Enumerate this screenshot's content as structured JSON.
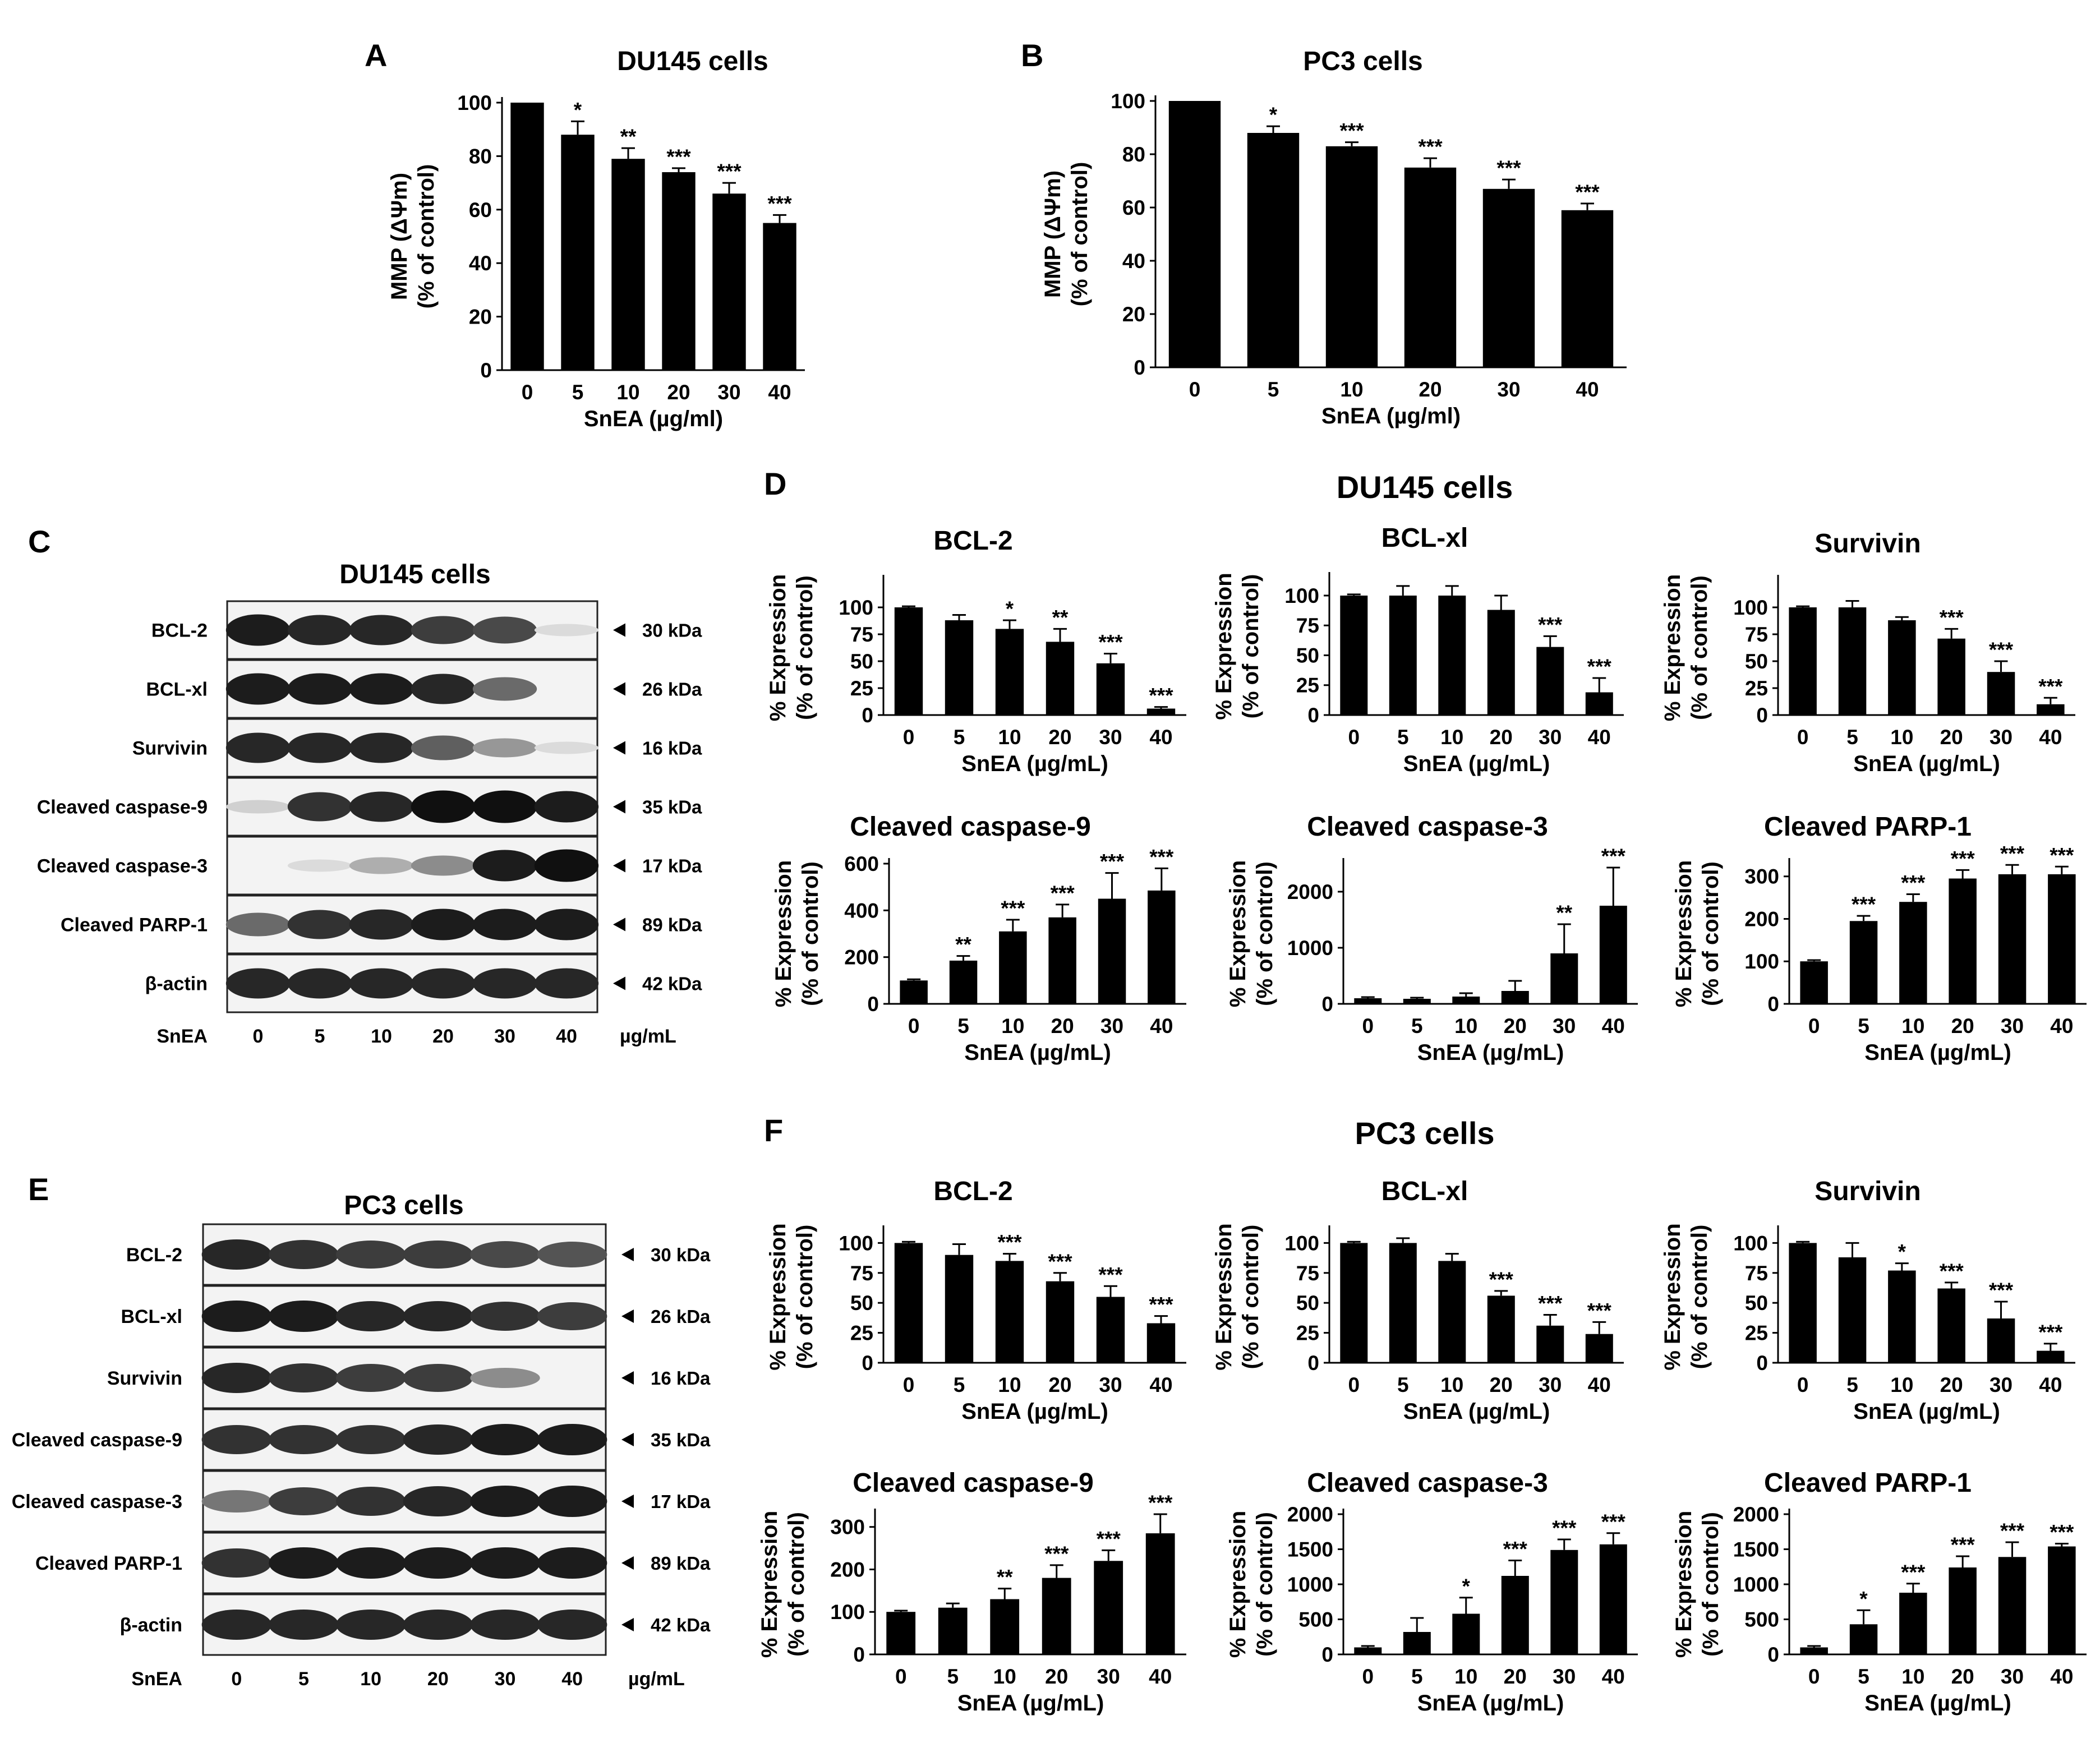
{
  "chart_data": [
    {
      "id": "A",
      "type": "bar",
      "title": "DU145 cells",
      "categories": [
        "0",
        "5",
        "10",
        "20",
        "30",
        "40"
      ],
      "values": [
        100,
        88,
        79,
        74,
        66,
        55
      ],
      "errors": [
        0,
        5,
        4,
        1.5,
        4,
        3
      ],
      "significance": [
        "",
        "*",
        "**",
        "***",
        "***",
        "***"
      ],
      "xlabel": "SnEA (µg/ml)",
      "ylabel": [
        "MMP (ΔΨm)",
        "(% of control)"
      ],
      "ylim": [
        0,
        100
      ],
      "yticks": [
        0,
        20,
        40,
        60,
        80,
        100
      ]
    },
    {
      "id": "B",
      "type": "bar",
      "title": "PC3 cells",
      "categories": [
        "0",
        "5",
        "10",
        "20",
        "30",
        "40"
      ],
      "values": [
        100,
        88,
        83,
        75,
        67,
        59
      ],
      "errors": [
        0,
        2.5,
        1.5,
        3.5,
        3.5,
        2.5
      ],
      "significance": [
        "",
        "*",
        "***",
        "***",
        "***",
        "***"
      ],
      "xlabel": "SnEA (µg/ml)",
      "ylabel": [
        "MMP (ΔΨm)",
        "(% of control)"
      ],
      "ylim": [
        0,
        100
      ],
      "yticks": [
        0,
        20,
        40,
        60,
        80,
        100
      ]
    },
    {
      "id": "D1",
      "type": "bar",
      "title": "BCL-2",
      "categories": [
        "0",
        "5",
        "10",
        "20",
        "30",
        "40"
      ],
      "values": [
        100,
        88,
        80,
        68,
        48,
        6
      ],
      "errors": [
        1,
        5,
        8,
        12,
        9,
        1.5
      ],
      "significance": [
        "",
        "",
        "*",
        "**",
        "***",
        "***"
      ],
      "xlabel": "SnEA (µg/mL)",
      "ylabel": [
        "% Expression",
        "(% of control)"
      ],
      "ylim": [
        0,
        125
      ],
      "yticks": [
        0,
        25,
        50,
        75,
        100
      ]
    },
    {
      "id": "D2",
      "type": "bar",
      "title": "BCL-xl",
      "categories": [
        "0",
        "5",
        "10",
        "20",
        "30",
        "40"
      ],
      "values": [
        100,
        100,
        100,
        88,
        57,
        19
      ],
      "errors": [
        1,
        8,
        8,
        12,
        9,
        12
      ],
      "significance": [
        "",
        "",
        "",
        "",
        "***",
        "***"
      ],
      "xlabel": "SnEA (µg/mL)",
      "ylabel": [
        "% Expression",
        "(% of control)"
      ],
      "ylim": [
        0,
        115
      ],
      "yticks": [
        0,
        25,
        50,
        75,
        100
      ]
    },
    {
      "id": "D3",
      "type": "bar",
      "title": "Survivin",
      "categories": [
        "0",
        "5",
        "10",
        "20",
        "30",
        "40"
      ],
      "values": [
        100,
        100,
        88,
        71,
        40,
        10
      ],
      "errors": [
        1,
        6,
        3,
        9,
        10,
        6
      ],
      "significance": [
        "",
        "",
        "",
        "***",
        "***",
        "***"
      ],
      "xlabel": "SnEA (µg/mL)",
      "ylabel": [
        "% Expression",
        "(% of control)"
      ],
      "ylim": [
        0,
        125
      ],
      "yticks": [
        0,
        25,
        50,
        75,
        100
      ]
    },
    {
      "id": "D4",
      "type": "bar",
      "title": "Cleaved caspase-9",
      "categories": [
        "0",
        "5",
        "10",
        "20",
        "30",
        "40"
      ],
      "values": [
        100,
        185,
        310,
        370,
        450,
        485
      ],
      "errors": [
        5,
        20,
        50,
        55,
        110,
        95
      ],
      "significance": [
        "",
        "**",
        "***",
        "***",
        "***",
        "***"
      ],
      "xlabel": "SnEA (µg/mL)",
      "ylabel": [
        "% Expression",
        "(% of control)"
      ],
      "ylim": [
        0,
        600
      ],
      "yticks": [
        0,
        200,
        400,
        600
      ]
    },
    {
      "id": "D5",
      "type": "bar",
      "title": "Cleaved caspase-3",
      "categories": [
        "0",
        "5",
        "10",
        "20",
        "30",
        "40"
      ],
      "values": [
        100,
        90,
        130,
        230,
        900,
        1750
      ],
      "errors": [
        20,
        20,
        60,
        180,
        520,
        680
      ],
      "significance": [
        "",
        "",
        "",
        "",
        "**",
        "***"
      ],
      "xlabel": "SnEA (µg/mL)",
      "ylabel": [
        "% Expression",
        "(% of control)"
      ],
      "ylim": [
        0,
        2500
      ],
      "yticks": [
        0,
        1000,
        2000
      ]
    },
    {
      "id": "D6",
      "type": "bar",
      "title": "Cleaved PARP-1",
      "categories": [
        "0",
        "5",
        "10",
        "20",
        "30",
        "40"
      ],
      "values": [
        100,
        195,
        240,
        295,
        305,
        305
      ],
      "errors": [
        3,
        12,
        18,
        20,
        22,
        18
      ],
      "significance": [
        "",
        "***",
        "***",
        "***",
        "***",
        "***"
      ],
      "xlabel": "SnEA (µg/mL)",
      "ylabel": [
        "% Expression",
        "(% of control)"
      ],
      "ylim": [
        0,
        330
      ],
      "yticks": [
        0,
        100,
        200,
        300
      ]
    },
    {
      "id": "F1",
      "type": "bar",
      "title": "BCL-2",
      "categories": [
        "0",
        "5",
        "10",
        "20",
        "30",
        "40"
      ],
      "values": [
        100,
        90,
        85,
        68,
        55,
        33
      ],
      "errors": [
        1,
        9,
        6,
        7,
        9,
        6
      ],
      "significance": [
        "",
        "",
        "***",
        "***",
        "***",
        "***"
      ],
      "xlabel": "SnEA (µg/mL)",
      "ylabel": [
        "% Expression",
        "(% of control)"
      ],
      "ylim": [
        0,
        110
      ],
      "yticks": [
        0,
        25,
        50,
        75,
        100
      ]
    },
    {
      "id": "F2",
      "type": "bar",
      "title": "BCL-xl",
      "categories": [
        "0",
        "5",
        "10",
        "20",
        "30",
        "40"
      ],
      "values": [
        100,
        100,
        85,
        56,
        31,
        24
      ],
      "errors": [
        1,
        4,
        6,
        4,
        9,
        10
      ],
      "significance": [
        "",
        "",
        "",
        "***",
        "***",
        "***"
      ],
      "xlabel": "SnEA (µg/mL)",
      "ylabel": [
        "% Expression",
        "(% of control)"
      ],
      "ylim": [
        0,
        110
      ],
      "yticks": [
        0,
        25,
        50,
        75,
        100
      ]
    },
    {
      "id": "F3",
      "type": "bar",
      "title": "Survivin",
      "categories": [
        "0",
        "5",
        "10",
        "20",
        "30",
        "40"
      ],
      "values": [
        100,
        88,
        77,
        62,
        37,
        10
      ],
      "errors": [
        1,
        12,
        6,
        5,
        14,
        6
      ],
      "significance": [
        "",
        "",
        "*",
        "***",
        "***",
        "***"
      ],
      "xlabel": "SnEA (µg/mL)",
      "ylabel": [
        "% Expression",
        "(% of control)"
      ],
      "ylim": [
        0,
        110
      ],
      "yticks": [
        0,
        25,
        50,
        75,
        100
      ]
    },
    {
      "id": "F4",
      "type": "bar",
      "title": "Cleaved caspase-9",
      "categories": [
        "0",
        "5",
        "10",
        "20",
        "30",
        "40"
      ],
      "values": [
        100,
        110,
        130,
        180,
        220,
        285
      ],
      "errors": [
        3,
        10,
        25,
        30,
        25,
        45
      ],
      "significance": [
        "",
        "",
        "**",
        "***",
        "***",
        "***"
      ],
      "xlabel": "SnEA (µg/mL)",
      "ylabel": [
        "% Expression",
        "(% of control)"
      ],
      "ylim": [
        0,
        330
      ],
      "yticks": [
        0,
        100,
        200,
        300
      ]
    },
    {
      "id": "F5",
      "type": "bar",
      "title": "Cleaved caspase-3",
      "categories": [
        "0",
        "5",
        "10",
        "20",
        "30",
        "40"
      ],
      "values": [
        100,
        320,
        580,
        1120,
        1490,
        1570
      ],
      "errors": [
        20,
        200,
        230,
        220,
        150,
        160
      ],
      "significance": [
        "",
        "",
        "*",
        "***",
        "***",
        "***"
      ],
      "xlabel": "SnEA (µg/mL)",
      "ylabel": [
        "% Expression",
        "(% of control)"
      ],
      "ylim": [
        0,
        2000
      ],
      "yticks": [
        0,
        500,
        1000,
        1500,
        2000
      ]
    },
    {
      "id": "F6",
      "type": "bar",
      "title": "Cleaved PARP-1",
      "categories": [
        "0",
        "5",
        "10",
        "20",
        "30",
        "40"
      ],
      "values": [
        100,
        430,
        880,
        1240,
        1390,
        1540
      ],
      "errors": [
        20,
        200,
        130,
        160,
        210,
        40
      ],
      "significance": [
        "",
        "*",
        "***",
        "***",
        "***",
        "***"
      ],
      "xlabel": "SnEA (µg/mL)",
      "ylabel": [
        "% Expression",
        "(% of control)"
      ],
      "ylim": [
        0,
        2000
      ],
      "yticks": [
        0,
        500,
        1000,
        1500,
        2000
      ]
    }
  ],
  "panel_labels": {
    "A": "A",
    "B": "B",
    "C": "C",
    "D": "D",
    "E": "E",
    "F": "F"
  },
  "section_titles": {
    "D": "DU145 cells",
    "F": "PC3 cells"
  },
  "western_blots": [
    {
      "id": "C",
      "title": "DU145 cells",
      "proteins": [
        "BCL-2",
        "BCL-xl",
        "Survivin",
        "Cleaved caspase-9",
        "Cleaved caspase-3",
        "Cleaved PARP-1",
        "β-actin"
      ],
      "kda": [
        "30 kDa",
        "26 kDa",
        "16 kDa",
        "35 kDa",
        "17 kDa",
        "89 kDa",
        "42 kDa"
      ],
      "treatment_label": "SnEA",
      "doses": [
        "0",
        "5",
        "10",
        "20",
        "30",
        "40"
      ],
      "unit": "µg/mL",
      "band_intensity": [
        [
          0.9,
          0.85,
          0.85,
          0.75,
          0.7,
          0.05
        ],
        [
          0.9,
          0.9,
          0.9,
          0.85,
          0.55,
          0
        ],
        [
          0.85,
          0.85,
          0.85,
          0.6,
          0.35,
          0.05
        ],
        [
          0.1,
          0.8,
          0.85,
          0.95,
          0.95,
          0.9
        ],
        [
          0,
          0.05,
          0.25,
          0.4,
          0.9,
          0.95
        ],
        [
          0.55,
          0.8,
          0.85,
          0.9,
          0.9,
          0.9
        ],
        [
          0.85,
          0.85,
          0.85,
          0.85,
          0.85,
          0.85
        ]
      ]
    },
    {
      "id": "E",
      "title": "PC3 cells",
      "proteins": [
        "BCL-2",
        "BCL-xl",
        "Survivin",
        "Cleaved caspase-9",
        "Cleaved caspase-3",
        "Cleaved PARP-1",
        "β-actin"
      ],
      "kda": [
        "30 kDa",
        "26 kDa",
        "16 kDa",
        "35 kDa",
        "17 kDa",
        "89 kDa",
        "42 kDa"
      ],
      "treatment_label": "SnEA",
      "doses": [
        "0",
        "5",
        "10",
        "20",
        "30",
        "40"
      ],
      "unit": "µg/mL",
      "band_intensity": [
        [
          0.85,
          0.8,
          0.75,
          0.75,
          0.7,
          0.65
        ],
        [
          0.9,
          0.9,
          0.85,
          0.85,
          0.8,
          0.75
        ],
        [
          0.85,
          0.8,
          0.75,
          0.75,
          0.4,
          0
        ],
        [
          0.8,
          0.8,
          0.8,
          0.85,
          0.9,
          0.9
        ],
        [
          0.5,
          0.75,
          0.8,
          0.85,
          0.9,
          0.9
        ],
        [
          0.8,
          0.9,
          0.9,
          0.9,
          0.9,
          0.9
        ],
        [
          0.85,
          0.85,
          0.85,
          0.85,
          0.85,
          0.85
        ]
      ]
    }
  ]
}
